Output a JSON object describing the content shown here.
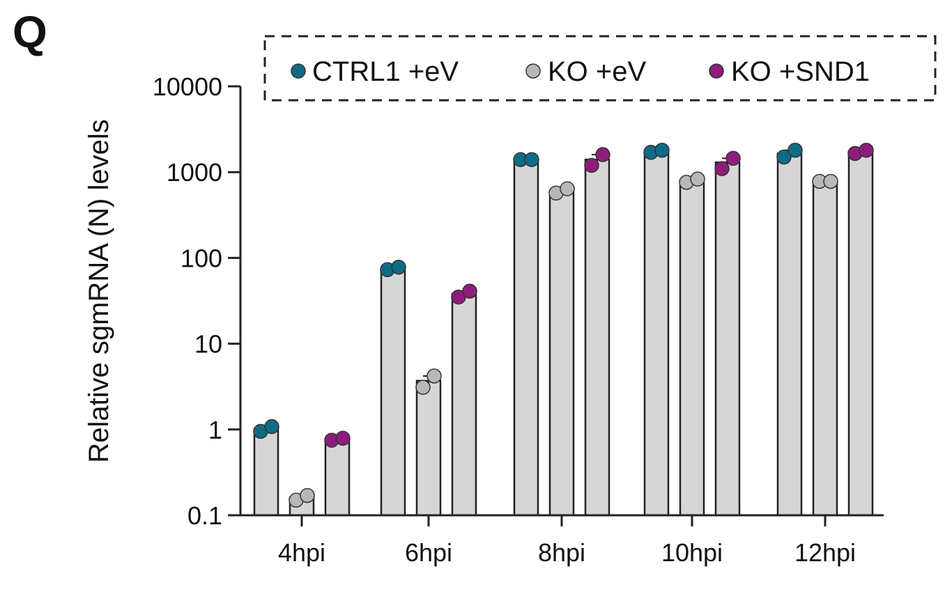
{
  "panel_label": "Q",
  "colors": {
    "CTRL1 +eV": "#0e6b86",
    "KO +eV": "#b8b8b8",
    "KO +SND1": "#8e1c7c",
    "bar_fill": "#d6d6d6",
    "axis": "#222222"
  },
  "chart_data": {
    "type": "bar",
    "scale": "log10",
    "categories": [
      "4hpi",
      "6hpi",
      "8hpi",
      "10hpi",
      "12hpi"
    ],
    "ylabel": "Relative sgmRNA (N) levels",
    "xlabel": "",
    "ylim": [
      0.1,
      10000
    ],
    "yticks": [
      0.1,
      1,
      10,
      100,
      1000,
      10000
    ],
    "ytick_labels": [
      "0.1",
      "1",
      "10",
      "100",
      "1000",
      "10000"
    ],
    "legend": {
      "placement": "top",
      "frame": "dashed",
      "entries": [
        "CTRL1 +eV",
        "KO +eV",
        "KO +SND1"
      ]
    },
    "series": [
      {
        "name": "CTRL1 +eV",
        "values": [
          1.0,
          75,
          1400,
          1750,
          1650
        ],
        "points": [
          [
            0.95,
            1.08
          ],
          [
            73,
            78
          ],
          [
            1400,
            1400
          ],
          [
            1700,
            1800
          ],
          [
            1500,
            1800
          ]
        ]
      },
      {
        "name": "KO +eV",
        "values": [
          0.16,
          3.7,
          610,
          800,
          780
        ],
        "points": [
          [
            0.15,
            0.17
          ],
          [
            3.1,
            4.2
          ],
          [
            570,
            640
          ],
          [
            760,
            830
          ],
          [
            780,
            780
          ]
        ]
      },
      {
        "name": "KO +SND1",
        "values": [
          0.77,
          38,
          1400,
          1300,
          1750
        ],
        "points": [
          [
            0.75,
            0.79
          ],
          [
            35,
            41
          ],
          [
            1200,
            1600
          ],
          [
            1100,
            1450
          ],
          [
            1650,
            1800
          ]
        ]
      }
    ]
  }
}
